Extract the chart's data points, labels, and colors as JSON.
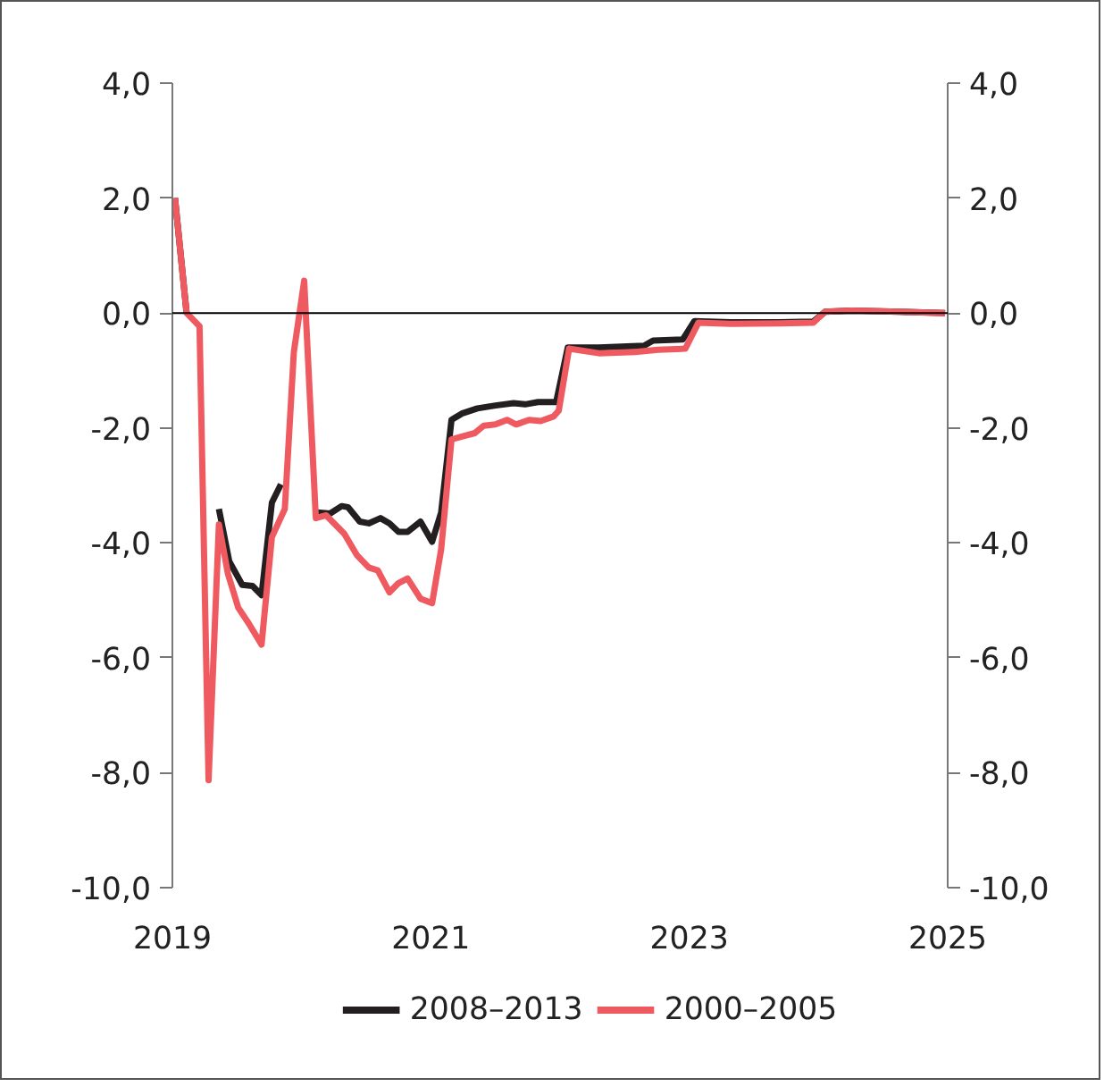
{
  "chart_data": {
    "type": "line",
    "xlim": [
      2019,
      2025
    ],
    "xticks": [
      2019,
      2021,
      2023,
      2025
    ],
    "ylim": [
      -10,
      4
    ],
    "yticks": [
      {
        "value": 4,
        "label": "4,0"
      },
      {
        "value": 2,
        "label": "2,0"
      },
      {
        "value": 0,
        "label": "0,0"
      },
      {
        "value": -2,
        "label": "-2,0"
      },
      {
        "value": -4,
        "label": "-4,0"
      },
      {
        "value": -6,
        "label": "-6,0"
      },
      {
        "value": -8,
        "label": "-8,0"
      },
      {
        "value": -10,
        "label": "-10,0"
      }
    ],
    "y2lim": [
      -10,
      4
    ],
    "y2ticks": [
      {
        "value": 4,
        "label": "4,0"
      },
      {
        "value": 2,
        "label": "2,0"
      },
      {
        "value": 0,
        "label": "0,0"
      },
      {
        "value": -2,
        "label": "-2,0"
      },
      {
        "value": -4,
        "label": "-4,0"
      },
      {
        "value": -6,
        "label": "-6,0"
      },
      {
        "value": -8,
        "label": "-8,0"
      },
      {
        "value": -10,
        "label": "-10,0"
      }
    ],
    "grid": false,
    "legend": "bottom",
    "line_style": "solid",
    "marker": "none",
    "ref_lines": [
      {
        "axis": "y",
        "value": 0,
        "color": "#000000"
      }
    ],
    "series": [
      {
        "name": "2008–2013",
        "color": "#231f20",
        "x": [
          2019.02,
          2019.11,
          2019.21,
          2019.28,
          2019.36,
          2019.44,
          2019.54,
          2019.62,
          2019.69,
          2019.77,
          2019.84,
          2019.94,
          2020.02,
          2020.12,
          2020.22,
          2020.31,
          2020.36,
          2020.45,
          2020.52,
          2020.61,
          2020.68,
          2020.75,
          2020.82,
          2020.92,
          2021.01,
          2021.08,
          2021.16,
          2021.24,
          2021.36,
          2021.5,
          2021.64,
          2021.73,
          2021.83,
          2021.97,
          2022.06,
          2022.3,
          2022.65,
          2022.72,
          2022.95,
          2023.04,
          2023.32,
          2023.7,
          2023.96,
          2024.05,
          2024.26,
          2024.63,
          2024.98
        ],
        "values": [
          2.0,
          0.0,
          null,
          null,
          -3.41,
          -4.32,
          -4.73,
          -4.75,
          -4.91,
          -3.3,
          -2.98,
          null,
          null,
          -3.47,
          -3.49,
          -3.36,
          -3.38,
          -3.63,
          -3.66,
          -3.57,
          -3.66,
          -3.81,
          -3.81,
          -3.63,
          -3.98,
          -3.47,
          -1.86,
          -1.75,
          -1.66,
          -1.61,
          -1.57,
          -1.59,
          -1.55,
          -1.55,
          -0.6,
          -0.6,
          -0.57,
          -0.48,
          -0.46,
          -0.14,
          -0.16,
          -0.16,
          -0.15,
          0.02,
          0.04,
          0.02,
          0.0
        ]
      },
      {
        "name": "2000–2005",
        "color": "#ee5a60",
        "x": [
          2019.02,
          2019.11,
          2019.21,
          2019.28,
          2019.36,
          2019.43,
          2019.51,
          2019.59,
          2019.69,
          2019.77,
          2019.87,
          2019.94,
          2020.02,
          2020.11,
          2020.19,
          2020.33,
          2020.43,
          2020.52,
          2020.59,
          2020.68,
          2020.75,
          2020.82,
          2020.92,
          2021.01,
          2021.08,
          2021.16,
          2021.24,
          2021.34,
          2021.41,
          2021.5,
          2021.59,
          2021.66,
          2021.76,
          2021.85,
          2021.95,
          2021.99,
          2022.07,
          2022.3,
          2022.58,
          2022.76,
          2022.97,
          2023.07,
          2023.32,
          2023.7,
          2023.96,
          2024.05,
          2024.26,
          2024.63,
          2024.98
        ],
        "values": [
          2.0,
          0.0,
          -0.23,
          -8.13,
          -3.68,
          -4.54,
          -5.13,
          -5.4,
          -5.77,
          -3.9,
          -3.41,
          -0.68,
          0.56,
          -3.57,
          -3.52,
          -3.84,
          -4.22,
          -4.43,
          -4.48,
          -4.86,
          -4.7,
          -4.62,
          -4.97,
          -5.05,
          -4.11,
          -2.2,
          -2.15,
          -2.09,
          -1.96,
          -1.94,
          -1.86,
          -1.94,
          -1.86,
          -1.88,
          -1.8,
          -1.7,
          -0.62,
          -0.7,
          -0.68,
          -0.64,
          -0.62,
          -0.17,
          -0.19,
          -0.18,
          -0.17,
          0.02,
          0.04,
          0.02,
          0.0
        ]
      }
    ]
  }
}
